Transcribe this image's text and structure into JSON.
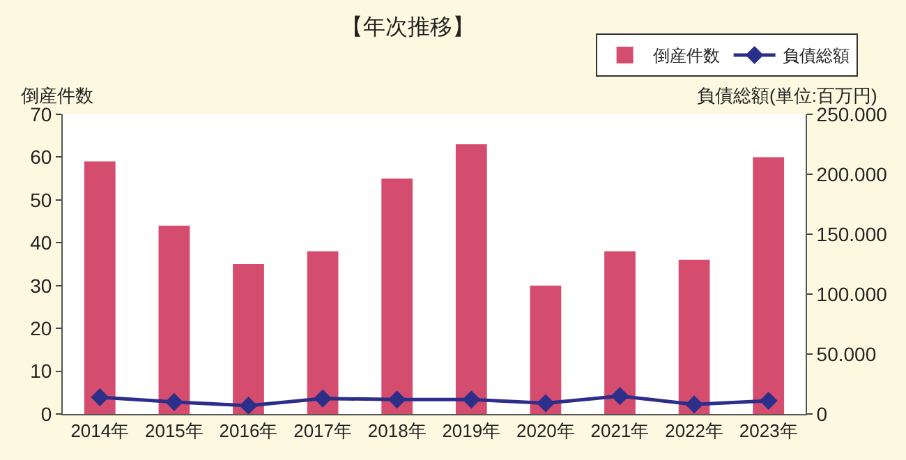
{
  "chart_data": {
    "type": "bar",
    "title": "【年次推移】",
    "ylabel": "倒産件数",
    "y2label": "負債総額(単位:百万円)",
    "categories": [
      "2014年",
      "2015年",
      "2016年",
      "2017年",
      "2018年",
      "2019年",
      "2020年",
      "2021年",
      "2022年",
      "2023年"
    ],
    "series": [
      {
        "name": "倒産件数",
        "color": "#d44d6e",
        "values": [
          59,
          44,
          35,
          38,
          55,
          63,
          30,
          38,
          36,
          60
        ]
      },
      {
        "name": "負債総額",
        "type": "line",
        "axis": "y2",
        "color": "#2b2f8a",
        "marker": "diamond",
        "values": [
          14000,
          10000,
          7000,
          13000,
          12000,
          12000,
          9000,
          15000,
          8000,
          11000
        ]
      }
    ],
    "ylim": [
      0,
      70
    ],
    "yticks": [
      0,
      10,
      20,
      30,
      40,
      50,
      60,
      70
    ],
    "y2lim": [
      0,
      250000
    ],
    "y2ticks": [
      0,
      {
        "value": 50000,
        "label": "50.000"
      },
      {
        "value": 100000,
        "label": "100.000"
      },
      {
        "value": 150000,
        "label": "150.000"
      },
      {
        "value": 200000,
        "label": "200.000"
      },
      {
        "value": 250000,
        "label": "250.000"
      }
    ],
    "grid": false,
    "legend": "top right"
  }
}
